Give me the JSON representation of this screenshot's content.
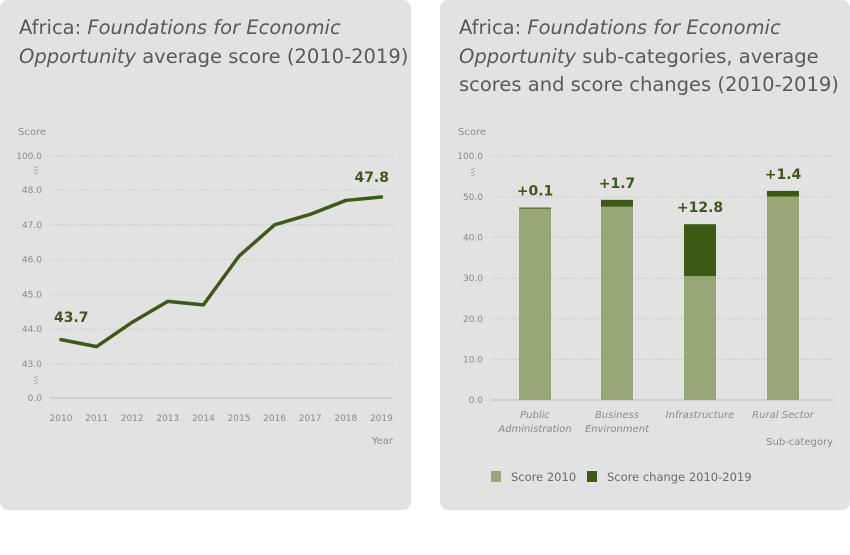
{
  "colors": {
    "line": "#3e5a16",
    "score_2010": "#98a776",
    "score_change": "#3d5a14",
    "panel": "#e3e2e2",
    "grid": "#c4c4c4"
  },
  "chart_data": [
    {
      "type": "line",
      "title_prefix": "Africa: ",
      "title_italic": "Foundations for Economic Opportunity",
      "title_suffix": " average score (2010-2019)",
      "xlabel": "Year",
      "ylabel": "Score",
      "x": [
        "2010",
        "2011",
        "2012",
        "2013",
        "2014",
        "2015",
        "2016",
        "2017",
        "2018",
        "2019"
      ],
      "values": [
        43.7,
        43.5,
        44.2,
        44.8,
        44.7,
        46.1,
        47.0,
        47.3,
        47.7,
        47.8
      ],
      "yticks": [
        "0.0",
        "43.0",
        "44.0",
        "45.0",
        "46.0",
        "47.0",
        "48.0",
        "100.0"
      ],
      "ylim": [
        43,
        48
      ],
      "axis_breaks": "between 0.0 and 43.0; between 48.0 and 100.0",
      "annotations": [
        {
          "x": "2010",
          "text": "43.7"
        },
        {
          "x": "2019",
          "text": "47.8"
        }
      ],
      "grid": true
    },
    {
      "type": "bar",
      "stacked": true,
      "title_prefix": "Africa: ",
      "title_italic": "Foundations for Economic Opportunity",
      "title_suffix": " sub-categories, average scores and score changes (2010-2019)",
      "xlabel": "Sub-category",
      "ylabel": "Score",
      "categories": [
        [
          "Public",
          "Administration"
        ],
        [
          "Business",
          "Environment"
        ],
        [
          "Infrastructure"
        ],
        [
          "Rural Sector"
        ]
      ],
      "series": [
        {
          "name": "Score 2010",
          "values": [
            47.3,
            47.6,
            30.5,
            50.1
          ]
        },
        {
          "name": "Score change 2010-2019",
          "values": [
            0.1,
            1.7,
            12.8,
            1.4
          ]
        }
      ],
      "data_labels": [
        "+0.1",
        "+1.7",
        "+12.8",
        "+1.4"
      ],
      "yticks": [
        "0.0",
        "10.0",
        "20.0",
        "30.0",
        "40.0",
        "50.0",
        "100.0"
      ],
      "ylim": [
        0,
        50
      ],
      "axis_breaks": "between 50.0 and 100.0",
      "legend": "bottom-left",
      "grid": true
    }
  ]
}
